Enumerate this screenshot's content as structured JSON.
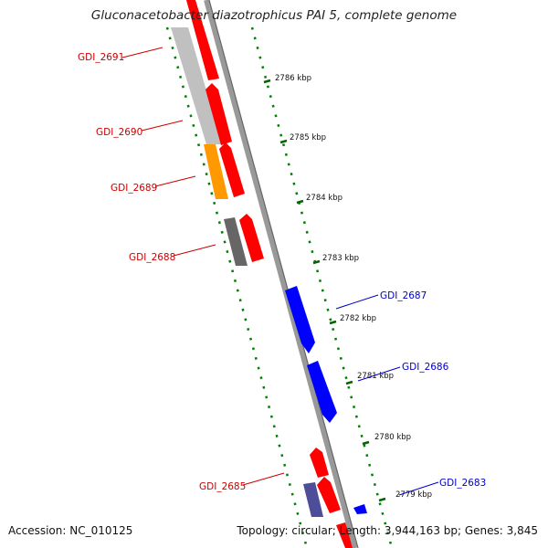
{
  "title": "Gluconacetobacter diazotrophicus PAI 5, complete genome",
  "footer": {
    "accession": "Accession: NC_010125",
    "summary": "Topology: circular; Length: 3,944,163 bp; Genes: 3,845"
  },
  "colors": {
    "forward_cds": "#ff0000",
    "reverse_cds": "#0000ff",
    "backbone": "#999999",
    "gc_ticks": "#008000",
    "gene_grey": "#c0c0c0",
    "gene_orange": "#ff9900",
    "gene_dark": "#666666",
    "gene_purple": "#4d4d99"
  },
  "scale_labels": [
    "2786 kbp",
    "2785 kbp",
    "2784 kbp",
    "2783 kbp",
    "2782 kbp",
    "2781 kbp",
    "2780 kbp",
    "2779 kbp"
  ],
  "gene_labels": [
    {
      "text": "GDI_2691",
      "strand": "forward"
    },
    {
      "text": "GDI_2690",
      "strand": "forward"
    },
    {
      "text": "GDI_2689",
      "strand": "forward"
    },
    {
      "text": "GDI_2688",
      "strand": "forward"
    },
    {
      "text": "GDI_2687",
      "strand": "reverse"
    },
    {
      "text": "GDI_2686",
      "strand": "reverse"
    },
    {
      "text": "GDI_2685",
      "strand": "forward"
    },
    {
      "text": "GDI_2683",
      "strand": "reverse"
    }
  ]
}
